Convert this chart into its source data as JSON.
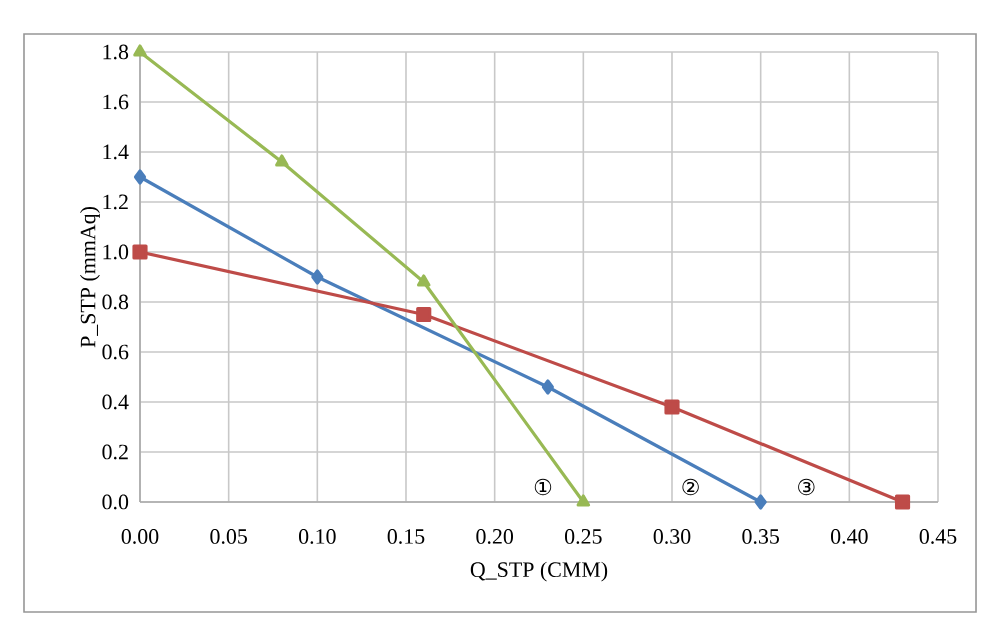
{
  "chart_data": {
    "type": "line",
    "xlabel": "Q_STP (CMM)",
    "ylabel": "P_STP (mmAq)",
    "xlim": [
      0,
      0.45
    ],
    "ylim": [
      0,
      1.8
    ],
    "xticks": [
      {
        "value": 0,
        "label": "0.00"
      },
      {
        "value": 0.05,
        "label": "0.05"
      },
      {
        "value": 0.1,
        "label": "0.10"
      },
      {
        "value": 0.15,
        "label": "0.15"
      },
      {
        "value": 0.2,
        "label": "0.20"
      },
      {
        "value": 0.25,
        "label": "0.25"
      },
      {
        "value": 0.3,
        "label": "0.30"
      },
      {
        "value": 0.35,
        "label": "0.35"
      },
      {
        "value": 0.4,
        "label": "0.40"
      },
      {
        "value": 0.45,
        "label": "0.45"
      }
    ],
    "yticks": [
      {
        "value": 0,
        "label": "0.0"
      },
      {
        "value": 0.2,
        "label": "0.2"
      },
      {
        "value": 0.4,
        "label": "0.4"
      },
      {
        "value": 0.6,
        "label": "0.6"
      },
      {
        "value": 0.8,
        "label": "0.8"
      },
      {
        "value": 1.0,
        "label": "1.0"
      },
      {
        "value": 1.2,
        "label": "1.2"
      },
      {
        "value": 1.4,
        "label": "1.4"
      },
      {
        "value": 1.6,
        "label": "1.6"
      },
      {
        "value": 1.8,
        "label": "1.8"
      }
    ],
    "grid": true,
    "line_style": "solid",
    "series": [
      {
        "color": "#4a7ebb",
        "marker": "diamond",
        "x": [
          0,
          0.1,
          0.23,
          0.35
        ],
        "values": [
          1.3,
          0.9,
          0.46,
          0
        ]
      },
      {
        "color": "#be4b48",
        "marker": "square",
        "x": [
          0,
          0.16,
          0.3,
          0.43
        ],
        "values": [
          1.0,
          0.75,
          0.38,
          0
        ]
      },
      {
        "color": "#98b954",
        "marker": "triangle",
        "x": [
          0,
          0.08,
          0.16,
          0.25
        ],
        "values": [
          1.8,
          1.36,
          0.88,
          0
        ]
      }
    ],
    "annotations": [
      "①",
      "②",
      "③"
    ]
  }
}
